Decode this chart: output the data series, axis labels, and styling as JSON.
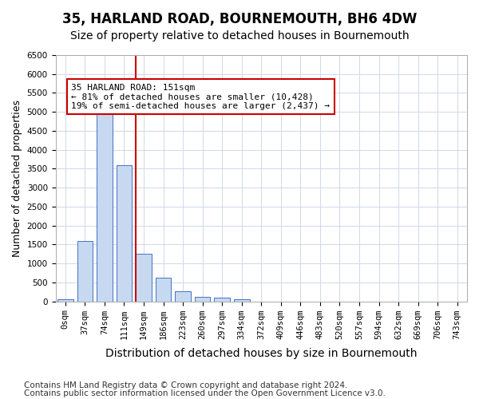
{
  "title": "35, HARLAND ROAD, BOURNEMOUTH, BH6 4DW",
  "subtitle": "Size of property relative to detached houses in Bournemouth",
  "xlabel": "Distribution of detached houses by size in Bournemouth",
  "ylabel": "Number of detached properties",
  "categories": [
    "0sqm",
    "37sqm",
    "74sqm",
    "111sqm",
    "149sqm",
    "186sqm",
    "223sqm",
    "260sqm",
    "297sqm",
    "334sqm",
    "372sqm",
    "409sqm",
    "446sqm",
    "483sqm",
    "520sqm",
    "557sqm",
    "594sqm",
    "632sqm",
    "669sqm",
    "706sqm",
    "743sqm"
  ],
  "bar_heights": [
    50,
    1600,
    5050,
    3600,
    1250,
    620,
    270,
    120,
    90,
    65,
    0,
    0,
    0,
    0,
    0,
    0,
    0,
    0,
    0,
    0,
    0
  ],
  "bar_color": "#c6d9f1",
  "bar_edge_color": "#4472c4",
  "vline_x": 3.6,
  "vline_color": "#cc0000",
  "ylim": [
    0,
    6500
  ],
  "yticks": [
    0,
    500,
    1000,
    1500,
    2000,
    2500,
    3000,
    3500,
    4000,
    4500,
    5000,
    5500,
    6000,
    6500
  ],
  "annotation_text": "35 HARLAND ROAD: 151sqm\n← 81% of detached houses are smaller (10,428)\n19% of semi-detached houses are larger (2,437) →",
  "annotation_box_color": "#cc0000",
  "footer1": "Contains HM Land Registry data © Crown copyright and database right 2024.",
  "footer2": "Contains public sector information licensed under the Open Government Licence v3.0.",
  "bg_color": "#ffffff",
  "grid_color": "#d0d8e8",
  "title_fontsize": 12,
  "subtitle_fontsize": 10,
  "xlabel_fontsize": 10,
  "ylabel_fontsize": 9,
  "tick_fontsize": 7.5,
  "footer_fontsize": 7.5
}
